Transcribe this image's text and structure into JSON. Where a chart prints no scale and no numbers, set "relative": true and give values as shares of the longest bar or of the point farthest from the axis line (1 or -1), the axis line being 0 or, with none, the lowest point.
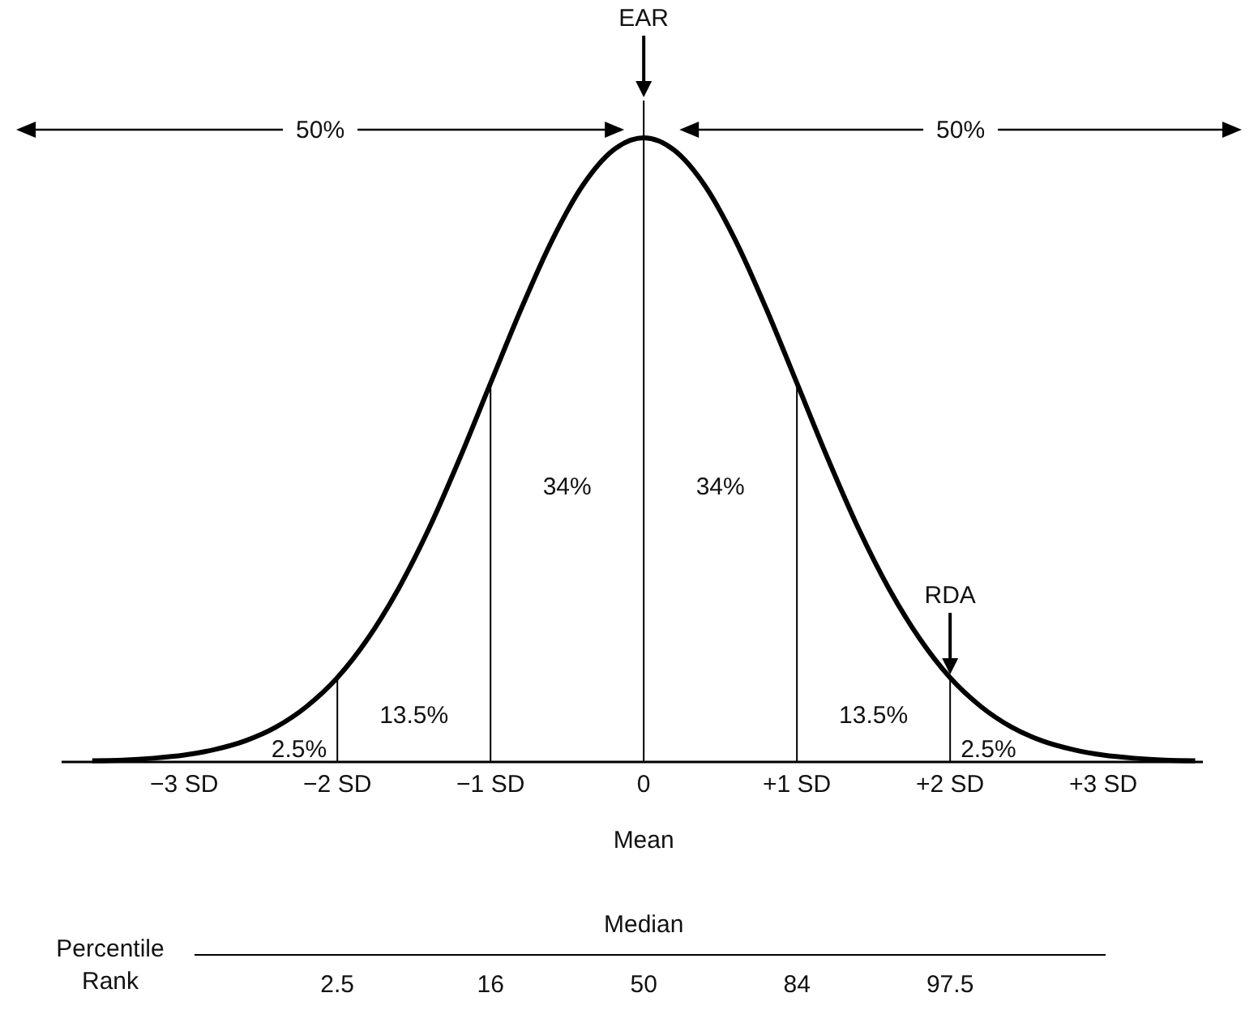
{
  "chart_data": {
    "type": "line",
    "relative": true,
    "x": [
      -3.6,
      -3.4,
      -3.2,
      -3,
      -2.8,
      -2.6,
      -2.4,
      -2.2,
      -2,
      -1.8,
      -1.6,
      -1.4,
      -1.2,
      -1,
      -0.8,
      -0.6,
      -0.4,
      -0.2,
      0,
      0.2,
      0.4,
      0.6,
      0.8,
      1,
      1.2,
      1.4,
      1.6,
      1.8,
      2,
      2.2,
      2.4,
      2.6,
      2.8,
      3,
      3.2,
      3.4,
      3.6
    ],
    "series": [
      {
        "color": "#000000",
        "values": [
          0.002,
          0.003,
          0.006,
          0.011,
          0.02,
          0.034,
          0.056,
          0.089,
          0.135,
          0.198,
          0.278,
          0.375,
          0.487,
          0.607,
          0.726,
          0.835,
          0.923,
          0.98,
          1,
          0.98,
          0.923,
          0.835,
          0.726,
          0.607,
          0.487,
          0.375,
          0.278,
          0.198,
          0.135,
          0.089,
          0.056,
          0.034,
          0.02,
          0.011,
          0.006,
          0.003,
          0.002
        ]
      }
    ],
    "xlim": [
      -3.8,
      3.65
    ],
    "xticks": [
      {
        "value": -3,
        "label": "−3 SD"
      },
      {
        "value": -2,
        "label": "−2 SD"
      },
      {
        "value": -1,
        "label": "−1 SD"
      },
      0,
      {
        "value": 1,
        "label": "+1 SD"
      },
      {
        "value": 2,
        "label": "+2 SD"
      },
      {
        "value": 3,
        "label": "+3 SD"
      }
    ],
    "tick_labels": "x",
    "grid": false,
    "marker": "none",
    "line_style": "solid",
    "ref_lines": [
      {
        "axis": "x",
        "value": -2,
        "label": null
      },
      {
        "axis": "x",
        "value": -1,
        "label": null
      },
      {
        "axis": "x",
        "value": 0,
        "label": "EAR"
      },
      {
        "axis": "x",
        "value": 1,
        "label": null
      },
      {
        "axis": "x",
        "value": 2,
        "label": "RDA"
      }
    ],
    "annotations": [
      "50%",
      "50%",
      "Percentile Rank",
      "34%",
      "34%",
      "13.5%",
      "13.5%",
      "2.5%",
      "2.5%",
      "Mean",
      "Median",
      "2.5",
      "16",
      "50",
      "84",
      "97.5"
    ]
  }
}
